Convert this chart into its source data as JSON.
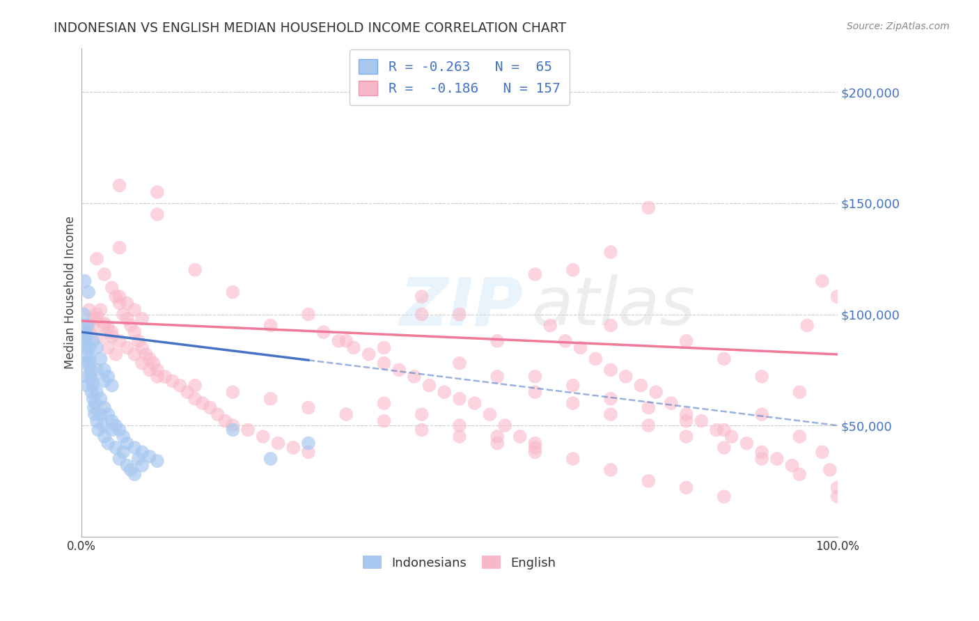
{
  "title": "INDONESIAN VS ENGLISH MEDIAN HOUSEHOLD INCOME CORRELATION CHART",
  "source": "Source: ZipAtlas.com",
  "ylabel": "Median Household Income",
  "xlim": [
    0.0,
    100.0
  ],
  "ylim": [
    0,
    220000
  ],
  "yticks": [
    0,
    50000,
    100000,
    150000,
    200000
  ],
  "bg_color": "#ffffff",
  "grid_color": "#cccccc",
  "blue_scatter_color": "#a8c8f0",
  "pink_scatter_color": "#f9b8c8",
  "blue_line_color": "#4472c4",
  "pink_line_color": "#f07898",
  "axis_label_color": "#4472c4",
  "title_color": "#333333",
  "indonesian_r": -0.263,
  "indonesian_n": 65,
  "english_r": -0.186,
  "english_n": 157,
  "indo_line_x0": 0,
  "indo_line_y0": 92000,
  "indo_line_x1": 100,
  "indo_line_y1": 50000,
  "indo_solid_end": 30,
  "eng_line_x0": 0,
  "eng_line_y0": 97000,
  "eng_line_x1": 100,
  "eng_line_y1": 82000,
  "indonesian_data": [
    [
      0.2,
      95000
    ],
    [
      0.3,
      88000
    ],
    [
      0.3,
      100000
    ],
    [
      0.4,
      92000
    ],
    [
      0.4,
      115000
    ],
    [
      0.5,
      78000
    ],
    [
      0.5,
      92000
    ],
    [
      0.6,
      72000
    ],
    [
      0.6,
      85000
    ],
    [
      0.7,
      68000
    ],
    [
      0.7,
      82000
    ],
    [
      0.8,
      95000
    ],
    [
      0.8,
      88000
    ],
    [
      0.9,
      110000
    ],
    [
      1.0,
      85000
    ],
    [
      1.0,
      78000
    ],
    [
      1.1,
      80000
    ],
    [
      1.2,
      75000
    ],
    [
      1.2,
      72000
    ],
    [
      1.3,
      65000
    ],
    [
      1.4,
      70000
    ],
    [
      1.5,
      62000
    ],
    [
      1.5,
      68000
    ],
    [
      1.5,
      88000
    ],
    [
      1.6,
      58000
    ],
    [
      1.7,
      55000
    ],
    [
      1.8,
      60000
    ],
    [
      2.0,
      52000
    ],
    [
      2.0,
      85000
    ],
    [
      2.0,
      65000
    ],
    [
      2.0,
      75000
    ],
    [
      2.2,
      48000
    ],
    [
      2.5,
      55000
    ],
    [
      2.5,
      80000
    ],
    [
      2.5,
      62000
    ],
    [
      2.8,
      50000
    ],
    [
      3.0,
      45000
    ],
    [
      3.0,
      75000
    ],
    [
      3.0,
      58000
    ],
    [
      3.0,
      70000
    ],
    [
      3.5,
      42000
    ],
    [
      3.5,
      72000
    ],
    [
      3.5,
      55000
    ],
    [
      4.0,
      48000
    ],
    [
      4.0,
      68000
    ],
    [
      4.0,
      52000
    ],
    [
      4.5,
      40000
    ],
    [
      4.5,
      50000
    ],
    [
      5.0,
      35000
    ],
    [
      5.0,
      48000
    ],
    [
      5.5,
      38000
    ],
    [
      5.5,
      45000
    ],
    [
      6.0,
      32000
    ],
    [
      6.0,
      42000
    ],
    [
      6.5,
      30000
    ],
    [
      7.0,
      28000
    ],
    [
      7.0,
      40000
    ],
    [
      7.5,
      35000
    ],
    [
      8.0,
      32000
    ],
    [
      8.0,
      38000
    ],
    [
      9.0,
      36000
    ],
    [
      10.0,
      34000
    ],
    [
      20.0,
      48000
    ],
    [
      25.0,
      35000
    ],
    [
      30.0,
      42000
    ]
  ],
  "english_data": [
    [
      0.5,
      88000
    ],
    [
      0.5,
      95000
    ],
    [
      1.0,
      92000
    ],
    [
      1.0,
      102000
    ],
    [
      1.5,
      98000
    ],
    [
      1.5,
      95000
    ],
    [
      2.0,
      100000
    ],
    [
      2.0,
      98000
    ],
    [
      2.0,
      125000
    ],
    [
      2.5,
      102000
    ],
    [
      2.5,
      90000
    ],
    [
      3.0,
      96000
    ],
    [
      3.0,
      95000
    ],
    [
      3.0,
      118000
    ],
    [
      3.5,
      94000
    ],
    [
      3.5,
      85000
    ],
    [
      4.0,
      90000
    ],
    [
      4.0,
      92000
    ],
    [
      4.0,
      112000
    ],
    [
      4.5,
      108000
    ],
    [
      4.5,
      82000
    ],
    [
      5.0,
      105000
    ],
    [
      5.0,
      88000
    ],
    [
      5.0,
      130000
    ],
    [
      5.0,
      108000
    ],
    [
      5.0,
      158000
    ],
    [
      5.5,
      100000
    ],
    [
      6.0,
      98000
    ],
    [
      6.0,
      85000
    ],
    [
      6.0,
      105000
    ],
    [
      6.5,
      95000
    ],
    [
      7.0,
      92000
    ],
    [
      7.0,
      82000
    ],
    [
      7.0,
      102000
    ],
    [
      7.5,
      88000
    ],
    [
      8.0,
      85000
    ],
    [
      8.0,
      78000
    ],
    [
      8.0,
      98000
    ],
    [
      8.5,
      82000
    ],
    [
      9.0,
      80000
    ],
    [
      9.0,
      75000
    ],
    [
      9.5,
      78000
    ],
    [
      10.0,
      75000
    ],
    [
      10.0,
      72000
    ],
    [
      10.0,
      155000
    ],
    [
      10.0,
      145000
    ],
    [
      11.0,
      72000
    ],
    [
      12.0,
      70000
    ],
    [
      13.0,
      68000
    ],
    [
      14.0,
      65000
    ],
    [
      15.0,
      62000
    ],
    [
      15.0,
      68000
    ],
    [
      15.0,
      120000
    ],
    [
      16.0,
      60000
    ],
    [
      17.0,
      58000
    ],
    [
      18.0,
      55000
    ],
    [
      19.0,
      52000
    ],
    [
      20.0,
      50000
    ],
    [
      20.0,
      65000
    ],
    [
      20.0,
      110000
    ],
    [
      22.0,
      48000
    ],
    [
      24.0,
      45000
    ],
    [
      25.0,
      62000
    ],
    [
      25.0,
      95000
    ],
    [
      26.0,
      42000
    ],
    [
      28.0,
      40000
    ],
    [
      30.0,
      38000
    ],
    [
      30.0,
      58000
    ],
    [
      30.0,
      100000
    ],
    [
      32.0,
      92000
    ],
    [
      34.0,
      88000
    ],
    [
      35.0,
      55000
    ],
    [
      35.0,
      88000
    ],
    [
      36.0,
      85000
    ],
    [
      38.0,
      82000
    ],
    [
      40.0,
      78000
    ],
    [
      40.0,
      52000
    ],
    [
      40.0,
      85000
    ],
    [
      40.0,
      60000
    ],
    [
      42.0,
      75000
    ],
    [
      44.0,
      72000
    ],
    [
      45.0,
      48000
    ],
    [
      45.0,
      100000
    ],
    [
      45.0,
      108000
    ],
    [
      45.0,
      55000
    ],
    [
      46.0,
      68000
    ],
    [
      48.0,
      65000
    ],
    [
      50.0,
      62000
    ],
    [
      50.0,
      45000
    ],
    [
      50.0,
      78000
    ],
    [
      50.0,
      100000
    ],
    [
      50.0,
      50000
    ],
    [
      52.0,
      60000
    ],
    [
      54.0,
      55000
    ],
    [
      55.0,
      42000
    ],
    [
      55.0,
      88000
    ],
    [
      55.0,
      72000
    ],
    [
      55.0,
      45000
    ],
    [
      56.0,
      50000
    ],
    [
      58.0,
      45000
    ],
    [
      60.0,
      42000
    ],
    [
      60.0,
      38000
    ],
    [
      60.0,
      65000
    ],
    [
      60.0,
      72000
    ],
    [
      60.0,
      118000
    ],
    [
      60.0,
      40000
    ],
    [
      62.0,
      95000
    ],
    [
      64.0,
      88000
    ],
    [
      65.0,
      68000
    ],
    [
      65.0,
      60000
    ],
    [
      65.0,
      35000
    ],
    [
      65.0,
      120000
    ],
    [
      66.0,
      85000
    ],
    [
      68.0,
      80000
    ],
    [
      70.0,
      75000
    ],
    [
      70.0,
      62000
    ],
    [
      70.0,
      55000
    ],
    [
      70.0,
      95000
    ],
    [
      70.0,
      128000
    ],
    [
      70.0,
      30000
    ],
    [
      72.0,
      72000
    ],
    [
      74.0,
      68000
    ],
    [
      75.0,
      58000
    ],
    [
      75.0,
      50000
    ],
    [
      75.0,
      148000
    ],
    [
      75.0,
      25000
    ],
    [
      76.0,
      65000
    ],
    [
      78.0,
      60000
    ],
    [
      80.0,
      55000
    ],
    [
      80.0,
      52000
    ],
    [
      80.0,
      45000
    ],
    [
      80.0,
      88000
    ],
    [
      80.0,
      22000
    ],
    [
      82.0,
      52000
    ],
    [
      84.0,
      48000
    ],
    [
      85.0,
      48000
    ],
    [
      85.0,
      40000
    ],
    [
      85.0,
      80000
    ],
    [
      85.0,
      18000
    ],
    [
      86.0,
      45000
    ],
    [
      88.0,
      42000
    ],
    [
      90.0,
      38000
    ],
    [
      90.0,
      35000
    ],
    [
      90.0,
      72000
    ],
    [
      90.0,
      55000
    ],
    [
      92.0,
      35000
    ],
    [
      94.0,
      32000
    ],
    [
      95.0,
      28000
    ],
    [
      95.0,
      65000
    ],
    [
      95.0,
      45000
    ],
    [
      96.0,
      95000
    ],
    [
      98.0,
      115000
    ],
    [
      98.0,
      38000
    ],
    [
      99.0,
      30000
    ],
    [
      100.0,
      108000
    ],
    [
      100.0,
      22000
    ],
    [
      100.0,
      18000
    ]
  ]
}
